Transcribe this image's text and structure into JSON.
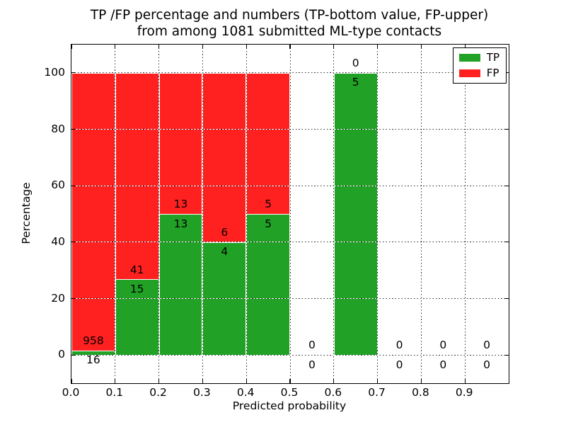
{
  "chart_data": {
    "type": "bar",
    "stacked": true,
    "percent_normalized": true,
    "title_lines": [
      "TP /FP percentage and numbers (TP-bottom value, FP-upper)",
      "from among 1081 submitted ML-type contacts"
    ],
    "total_contacts": 1081,
    "xlabel": "Predicted probability",
    "ylabel": "Percentage",
    "xlim": [
      0.0,
      1.0
    ],
    "ylim": [
      -10,
      110
    ],
    "x_ticks": [
      0.0,
      0.1,
      0.2,
      0.3,
      0.4,
      0.5,
      0.6,
      0.7,
      0.8,
      0.9
    ],
    "x_tick_labels": [
      "0.0",
      "0.1",
      "0.2",
      "0.3",
      "0.4",
      "0.5",
      "0.6",
      "0.7",
      "0.8",
      "0.9"
    ],
    "y_ticks": [
      0,
      20,
      40,
      60,
      80,
      100
    ],
    "y_tick_labels": [
      "0",
      "20",
      "40",
      "60",
      "80",
      "100"
    ],
    "grid": "dotted",
    "colors": {
      "tp": "#21A126",
      "fp": "#FF2020",
      "bar_edge": "#ffffff"
    },
    "legend": {
      "position": "upper right",
      "entries": [
        {
          "label": "TP",
          "color": "#21A126"
        },
        {
          "label": "FP",
          "color": "#FF2020"
        }
      ]
    },
    "bins": [
      {
        "x0": 0.0,
        "x1": 0.1,
        "tp": 16,
        "fp": 958
      },
      {
        "x0": 0.1,
        "x1": 0.2,
        "tp": 15,
        "fp": 41
      },
      {
        "x0": 0.2,
        "x1": 0.3,
        "tp": 13,
        "fp": 13
      },
      {
        "x0": 0.3,
        "x1": 0.4,
        "tp": 4,
        "fp": 6
      },
      {
        "x0": 0.4,
        "x1": 0.5,
        "tp": 5,
        "fp": 5
      },
      {
        "x0": 0.5,
        "x1": 0.6,
        "tp": 0,
        "fp": 0
      },
      {
        "x0": 0.6,
        "x1": 0.7,
        "tp": 5,
        "fp": 0
      },
      {
        "x0": 0.7,
        "x1": 0.8,
        "tp": 0,
        "fp": 0
      },
      {
        "x0": 0.8,
        "x1": 0.9,
        "tp": 0,
        "fp": 0
      },
      {
        "x0": 0.9,
        "x1": 1.0,
        "tp": 0,
        "fp": 0
      }
    ]
  }
}
